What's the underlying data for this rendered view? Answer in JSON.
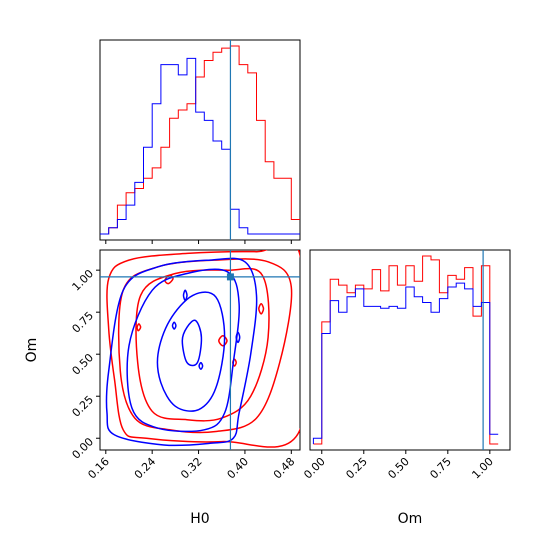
{
  "chart_data": {
    "type": "corner",
    "parameters": [
      "H0",
      "Om"
    ],
    "truths": {
      "H0": 0.375,
      "Om": 0.96
    },
    "truth_color": "#1f77b4",
    "series": [
      {
        "color": "#ff0000"
      },
      {
        "color": "#0000ff"
      }
    ],
    "panels": [
      {
        "type": "histogram",
        "param": "H0",
        "xlim": [
          0.15,
          0.495
        ],
        "bins": [
          0.15,
          0.165,
          0.18,
          0.195,
          0.21,
          0.225,
          0.24,
          0.255,
          0.27,
          0.285,
          0.3,
          0.315,
          0.33,
          0.345,
          0.36,
          0.375,
          0.39,
          0.405,
          0.42,
          0.435,
          0.45,
          0.465,
          0.48,
          0.495
        ],
        "counts": [
          {
            "series": 0,
            "values": [
              0,
              3,
              14,
              20,
              22,
              27,
              32,
              42,
              56,
              60,
              63,
              76,
              84,
              88,
              90,
              91,
              82,
              78,
              55,
              35,
              27,
              27,
              7
            ]
          },
          {
            "series": 1,
            "values": [
              0,
              3,
              7,
              14,
              25,
              42,
              63,
              82,
              82,
              77,
              85,
              59,
              55,
              45,
              41,
              12,
              3,
              0,
              0,
              0,
              0,
              0,
              0
            ]
          }
        ],
        "xticks": [
          0.16,
          0.24,
          0.32,
          0.4,
          0.48
        ]
      },
      {
        "type": "contour",
        "xparam": "H0",
        "yparam": "Om",
        "xlim": [
          0.15,
          0.495
        ],
        "ylim": [
          -0.07,
          1.12
        ],
        "xlabel": "H0",
        "ylabel": "Om",
        "xticks": [
          "0.16",
          "0.24",
          "0.32",
          "0.40",
          "0.48"
        ],
        "yticks": [
          "0.00",
          "0.25",
          "0.50",
          "0.75",
          "1.00"
        ],
        "contours": [
          {
            "series": 0,
            "points": [
              [
                0.165,
                0.95
              ],
              [
                0.2,
                1.06
              ],
              [
                0.3,
                1.1
              ],
              [
                0.42,
                1.11
              ],
              [
                0.495,
                1.09
              ],
              [
                0.495,
                0.05
              ],
              [
                0.36,
                -0.02
              ],
              [
                0.23,
                0.0
              ],
              [
                0.19,
                0.05
              ],
              [
                0.175,
                0.35
              ],
              [
                0.165,
                0.65
              ],
              [
                0.165,
                0.95
              ]
            ]
          },
          {
            "series": 0,
            "points": [
              [
                0.19,
                0.88
              ],
              [
                0.25,
                1.02
              ],
              [
                0.35,
                1.06
              ],
              [
                0.44,
                1.05
              ],
              [
                0.48,
                0.9
              ],
              [
                0.46,
                0.45
              ],
              [
                0.42,
                0.12
              ],
              [
                0.35,
                0.04
              ],
              [
                0.27,
                0.05
              ],
              [
                0.21,
                0.12
              ],
              [
                0.185,
                0.4
              ],
              [
                0.19,
                0.88
              ]
            ]
          },
          {
            "series": 0,
            "points": [
              [
                0.22,
                0.85
              ],
              [
                0.28,
                0.98
              ],
              [
                0.37,
                1.0
              ],
              [
                0.43,
                0.97
              ],
              [
                0.44,
                0.6
              ],
              [
                0.41,
                0.25
              ],
              [
                0.36,
                0.12
              ],
              [
                0.3,
                0.11
              ],
              [
                0.24,
                0.16
              ],
              [
                0.215,
                0.45
              ],
              [
                0.22,
                0.85
              ]
            ]
          },
          {
            "series": 0,
            "points": [
              [
                0.262,
                0.94
              ],
              [
                0.27,
                0.97
              ],
              [
                0.276,
                0.95
              ],
              [
                0.268,
                0.92
              ],
              [
                0.262,
                0.94
              ]
            ]
          },
          {
            "series": 0,
            "points": [
              [
                0.214,
                0.66
              ],
              [
                0.217,
                0.68
              ],
              [
                0.22,
                0.66
              ],
              [
                0.216,
                0.64
              ],
              [
                0.214,
                0.66
              ]
            ]
          },
          {
            "series": 0,
            "points": [
              [
                0.355,
                0.58
              ],
              [
                0.362,
                0.61
              ],
              [
                0.369,
                0.58
              ],
              [
                0.362,
                0.55
              ],
              [
                0.355,
                0.58
              ]
            ]
          },
          {
            "series": 0,
            "points": [
              [
                0.424,
                0.77
              ],
              [
                0.428,
                0.8
              ],
              [
                0.432,
                0.77
              ],
              [
                0.428,
                0.74
              ],
              [
                0.424,
                0.77
              ]
            ]
          },
          {
            "series": 0,
            "points": [
              [
                0.379,
                0.45
              ],
              [
                0.382,
                0.47
              ],
              [
                0.385,
                0.45
              ],
              [
                0.382,
                0.43
              ],
              [
                0.379,
                0.45
              ]
            ]
          },
          {
            "series": 1,
            "points": [
              [
                0.165,
                0.4
              ],
              [
                0.19,
                0.88
              ],
              [
                0.25,
                1.02
              ],
              [
                0.34,
                1.06
              ],
              [
                0.4,
                1.05
              ],
              [
                0.42,
                0.85
              ],
              [
                0.41,
                0.5
              ],
              [
                0.39,
                0.15
              ],
              [
                0.38,
                0.0
              ],
              [
                0.34,
                -0.03
              ],
              [
                0.26,
                -0.04
              ],
              [
                0.175,
                0.02
              ],
              [
                0.162,
                0.15
              ],
              [
                0.165,
                0.4
              ]
            ]
          },
          {
            "series": 1,
            "points": [
              [
                0.2,
                0.55
              ],
              [
                0.24,
                0.88
              ],
              [
                0.3,
                0.98
              ],
              [
                0.37,
                0.99
              ],
              [
                0.39,
                0.8
              ],
              [
                0.38,
                0.45
              ],
              [
                0.365,
                0.15
              ],
              [
                0.33,
                0.05
              ],
              [
                0.25,
                0.06
              ],
              [
                0.205,
                0.18
              ],
              [
                0.2,
                0.55
              ]
            ]
          },
          {
            "series": 1,
            "points": [
              [
                0.25,
                0.5
              ],
              [
                0.27,
                0.7
              ],
              [
                0.31,
                0.85
              ],
              [
                0.35,
                0.84
              ],
              [
                0.365,
                0.6
              ],
              [
                0.35,
                0.3
              ],
              [
                0.32,
                0.17
              ],
              [
                0.28,
                0.19
              ],
              [
                0.255,
                0.33
              ],
              [
                0.25,
                0.5
              ]
            ]
          },
          {
            "series": 1,
            "points": [
              [
                0.292,
                0.58
              ],
              [
                0.3,
                0.66
              ],
              [
                0.315,
                0.7
              ],
              [
                0.325,
                0.6
              ],
              [
                0.318,
                0.45
              ],
              [
                0.3,
                0.45
              ],
              [
                0.292,
                0.58
              ]
            ]
          },
          {
            "series": 1,
            "points": [
              [
                0.294,
                0.85
              ],
              [
                0.297,
                0.88
              ],
              [
                0.3,
                0.85
              ],
              [
                0.297,
                0.82
              ],
              [
                0.294,
                0.85
              ]
            ]
          },
          {
            "series": 1,
            "points": [
              [
                0.275,
                0.67
              ],
              [
                0.278,
                0.69
              ],
              [
                0.281,
                0.67
              ],
              [
                0.278,
                0.65
              ],
              [
                0.275,
                0.67
              ]
            ]
          },
          {
            "series": 1,
            "points": [
              [
                0.321,
                0.43
              ],
              [
                0.324,
                0.45
              ],
              [
                0.327,
                0.43
              ],
              [
                0.324,
                0.41
              ],
              [
                0.321,
                0.43
              ]
            ]
          },
          {
            "series": 1,
            "points": [
              [
                0.385,
                0.6
              ],
              [
                0.388,
                0.63
              ],
              [
                0.391,
                0.6
              ],
              [
                0.388,
                0.57
              ],
              [
                0.385,
                0.6
              ]
            ]
          }
        ]
      },
      {
        "type": "histogram",
        "param": "Om",
        "xlim": [
          -0.07,
          1.12
        ],
        "bins": [
          -0.05,
          0.0,
          0.05,
          0.1,
          0.15,
          0.2,
          0.25,
          0.3,
          0.35,
          0.4,
          0.45,
          0.5,
          0.55,
          0.6,
          0.65,
          0.7,
          0.75,
          0.8,
          0.85,
          0.9,
          0.95,
          1.0,
          1.05
        ],
        "counts": [
          {
            "series": 0,
            "values": [
              0,
              63,
              85,
              82,
              78,
              82,
              80,
              90,
              79,
              92,
              82,
              92,
              84,
              97,
              95,
              78,
              87,
              85,
              91,
              66,
              92,
              0
            ]
          },
          {
            "series": 1,
            "values": [
              3,
              57,
              74,
              68,
              76,
              80,
              71,
              71,
              70,
              71,
              70,
              81,
              76,
              73,
              68,
              75,
              81,
              83,
              80,
              71,
              73,
              5
            ]
          }
        ],
        "xlabel": "Om",
        "xticks": [
          "0.00",
          "0.25",
          "0.50",
          "0.75",
          "1.00"
        ]
      }
    ]
  }
}
